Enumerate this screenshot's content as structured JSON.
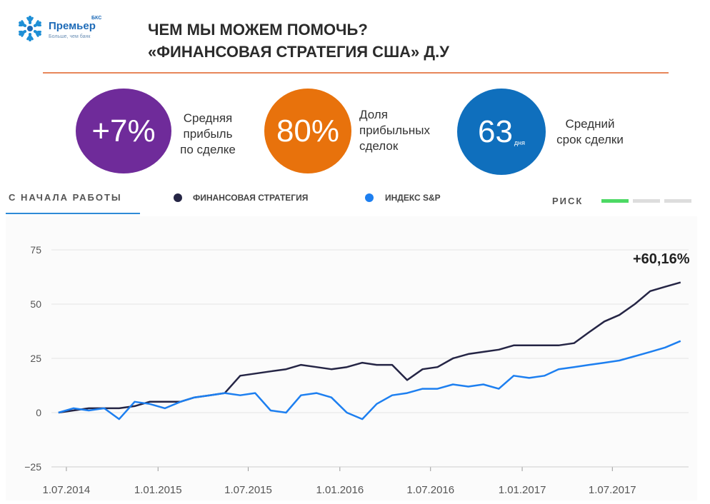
{
  "logo": {
    "name": "Премьер",
    "superscript": "БКС",
    "tagline": "Больше, чем банк"
  },
  "header": {
    "title_line1": "ЧЕМ МЫ МОЖЕМ ПОМОЧЬ?",
    "title_line2": "«ФИНАНСОВАЯ СТРАТЕГИЯ США» Д.У"
  },
  "stats": [
    {
      "value": "+7%",
      "unit": "",
      "label_lines": [
        "Средняя",
        "прибыль",
        "по сделке"
      ],
      "color": "#6f2b9a"
    },
    {
      "value": "80%",
      "unit": "",
      "label_lines": [
        "Доля",
        "прибыльных",
        "сделок"
      ],
      "color": "#e8720c"
    },
    {
      "value": "63",
      "unit": "дня",
      "label_lines": [
        "Средний",
        "срок сделки"
      ],
      "color": "#0f6fbd"
    }
  ],
  "tabs": {
    "active": "С НАЧАЛА РАБОТЫ"
  },
  "legend": {
    "strategy": "ФИНАНСОВАЯ СТРАТЕГИЯ",
    "index": "ИНДЕКС S&P",
    "risk_label": "РИСК",
    "risk_level": 1,
    "risk_max": 3,
    "colors": {
      "strategy": "#252545",
      "index": "#1d7ff0",
      "risk_on": "#4cd964",
      "risk_off": "#dddddd"
    }
  },
  "chart_data": {
    "type": "line",
    "final_label": "+60,16%",
    "ylim": [
      -25,
      75
    ],
    "yticks": [
      75,
      50,
      25,
      0,
      -25
    ],
    "xticks": [
      "1.07.2014",
      "1.01.2015",
      "1.07.2015",
      "1.01.2016",
      "1.07.2016",
      "1.01.2017",
      "1.07.2017"
    ],
    "xlim": [
      "2014-06-01",
      "2017-12-01"
    ],
    "grid": true,
    "series": [
      {
        "name": "ФИНАНСОВАЯ СТРАТЕГИЯ",
        "x": [
          "2014-06-15",
          "2014-07-15",
          "2014-08-15",
          "2014-09-15",
          "2014-10-15",
          "2014-11-15",
          "2014-12-15",
          "2015-01-15",
          "2015-02-15",
          "2015-03-15",
          "2015-04-15",
          "2015-05-15",
          "2015-06-15",
          "2015-07-15",
          "2015-08-15",
          "2015-09-15",
          "2015-10-15",
          "2015-11-15",
          "2015-12-15",
          "2016-01-15",
          "2016-02-15",
          "2016-03-15",
          "2016-04-15",
          "2016-05-15",
          "2016-06-15",
          "2016-07-15",
          "2016-08-15",
          "2016-09-15",
          "2016-10-15",
          "2016-11-15",
          "2016-12-15",
          "2017-01-15",
          "2017-02-15",
          "2017-03-15",
          "2017-04-15",
          "2017-05-15",
          "2017-06-15",
          "2017-07-15",
          "2017-08-15",
          "2017-09-15",
          "2017-10-15",
          "2017-11-15"
        ],
        "values": [
          0,
          1,
          2,
          2,
          2,
          3,
          5,
          5,
          5,
          7,
          8,
          9,
          17,
          18,
          19,
          20,
          22,
          21,
          20,
          21,
          23,
          22,
          22,
          15,
          20,
          21,
          25,
          27,
          28,
          29,
          31,
          31,
          31,
          31,
          32,
          37,
          42,
          45,
          50,
          56,
          58,
          60
        ]
      },
      {
        "name": "ИНДЕКС S&P",
        "x": [
          "2014-06-15",
          "2014-07-15",
          "2014-08-15",
          "2014-09-15",
          "2014-10-15",
          "2014-11-15",
          "2014-12-15",
          "2015-01-15",
          "2015-02-15",
          "2015-03-15",
          "2015-04-15",
          "2015-05-15",
          "2015-06-15",
          "2015-07-15",
          "2015-08-15",
          "2015-09-15",
          "2015-10-15",
          "2015-11-15",
          "2015-12-15",
          "2016-01-15",
          "2016-02-15",
          "2016-03-15",
          "2016-04-15",
          "2016-05-15",
          "2016-06-15",
          "2016-07-15",
          "2016-08-15",
          "2016-09-15",
          "2016-10-15",
          "2016-11-15",
          "2016-12-15",
          "2017-01-15",
          "2017-02-15",
          "2017-03-15",
          "2017-04-15",
          "2017-05-15",
          "2017-06-15",
          "2017-07-15",
          "2017-08-15",
          "2017-09-15",
          "2017-10-15",
          "2017-11-15"
        ],
        "values": [
          0,
          2,
          1,
          2,
          -3,
          5,
          4,
          2,
          5,
          7,
          8,
          9,
          8,
          9,
          1,
          0,
          8,
          9,
          7,
          0,
          -3,
          4,
          8,
          9,
          11,
          11,
          13,
          12,
          13,
          11,
          17,
          16,
          17,
          20,
          21,
          22,
          23,
          24,
          26,
          28,
          30,
          33
        ]
      }
    ]
  }
}
